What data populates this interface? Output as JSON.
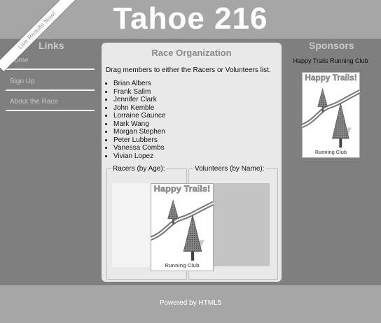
{
  "header": {
    "title": "Tahoe 216",
    "ribbon": "Live Results Now!"
  },
  "nav": {
    "heading": "Links",
    "items": [
      "Home",
      "Sign Up",
      "About the Race"
    ]
  },
  "main": {
    "title": "Race Organization",
    "instructions": "Drag members to either the Racers or Volunteers list.",
    "members": [
      "Brian Albers",
      "Frank Salim",
      "Jennifer Clark",
      "John Kemble",
      "Lorraine Gaunce",
      "Mark Wang",
      "Morgan Stephen",
      "Peter Lubbers",
      "Vanessa Combs",
      "Vivian Lopez"
    ],
    "racers_legend": "Racers (by Age):",
    "volunteers_legend": "Volunteers (by Name):"
  },
  "logo": {
    "title": "Happy Trails!",
    "subtitle": "Running Club"
  },
  "sponsors": {
    "heading": "Sponsors",
    "name": "Happy Trails Running Club"
  },
  "footer": {
    "text": "Powered by HTML5"
  }
}
